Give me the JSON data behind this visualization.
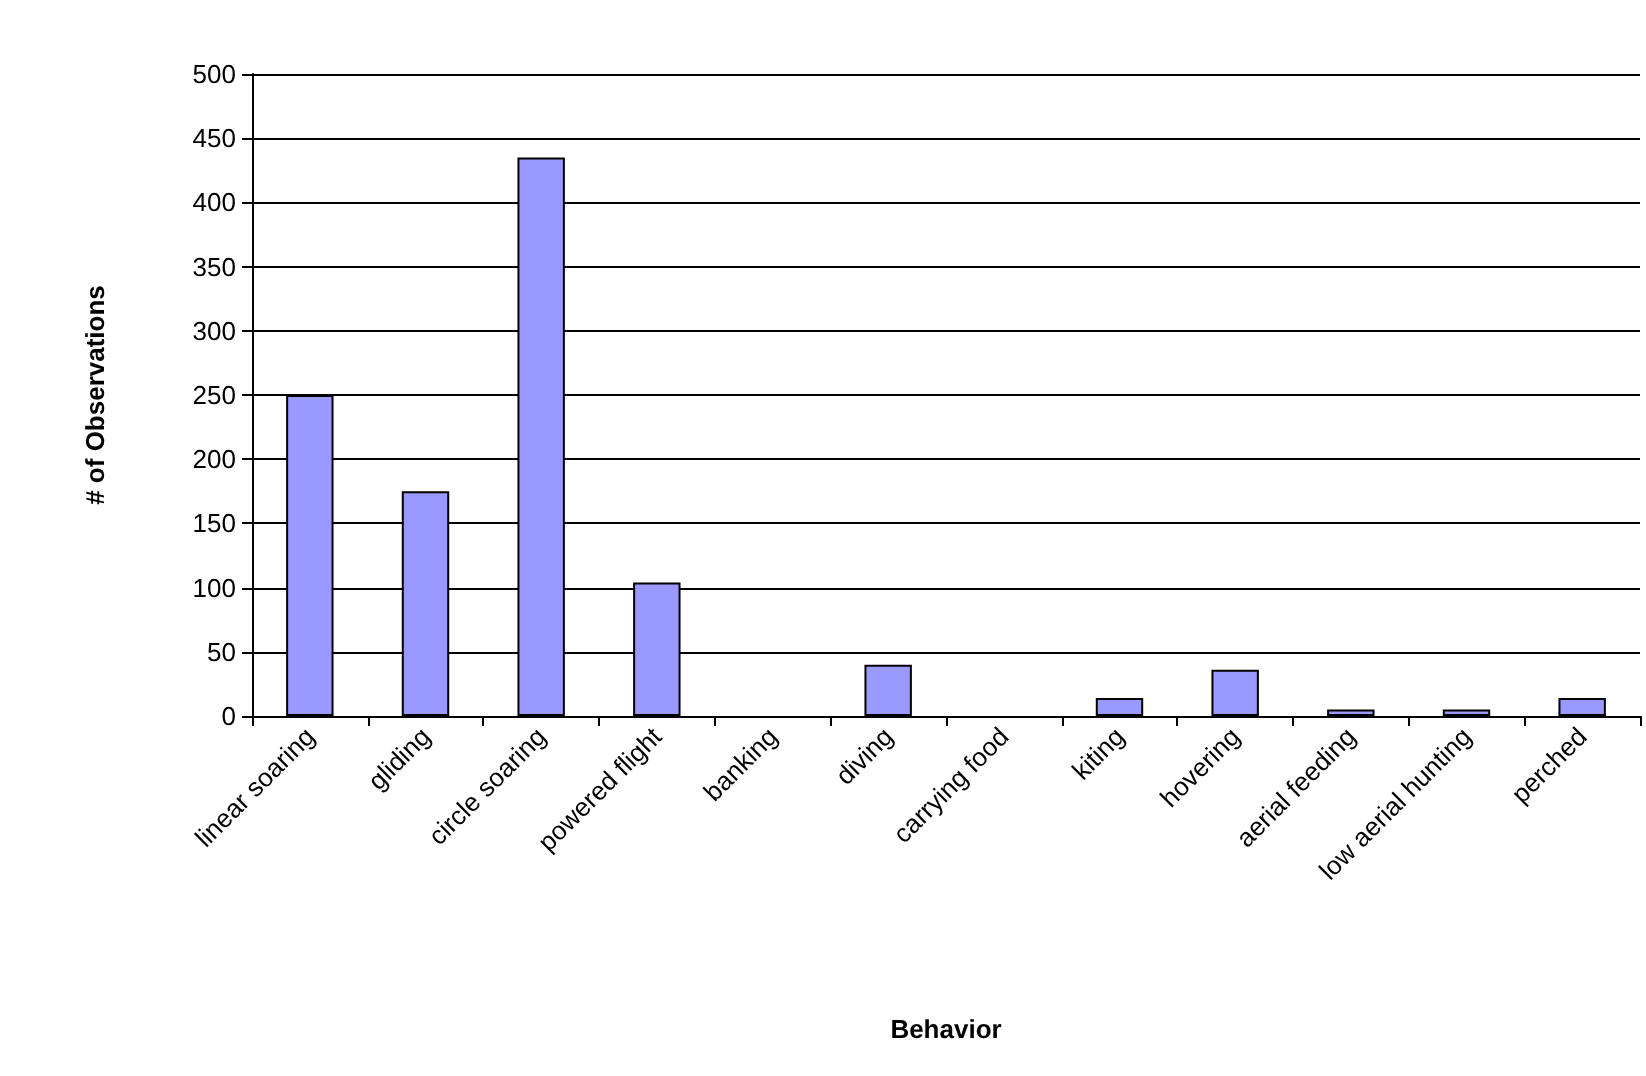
{
  "chart_data": {
    "type": "bar",
    "xlabel": "Behavior",
    "ylabel": "# of Observations",
    "categories": [
      "linear soaring",
      "gliding",
      "circle soaring",
      "powered flight",
      "banking",
      "diving",
      "carrying food",
      "kiting",
      "hovering",
      "aerial feeding",
      "low aerial hunting",
      "perched"
    ],
    "values": [
      250,
      175,
      435,
      104,
      0,
      40,
      0,
      14,
      36,
      5,
      5,
      14
    ],
    "color": "#9999ff",
    "ylim": [
      0,
      500
    ],
    "yticks": [
      0,
      50,
      100,
      150,
      200,
      250,
      300,
      350,
      400,
      450,
      500
    ],
    "grid": "y"
  }
}
